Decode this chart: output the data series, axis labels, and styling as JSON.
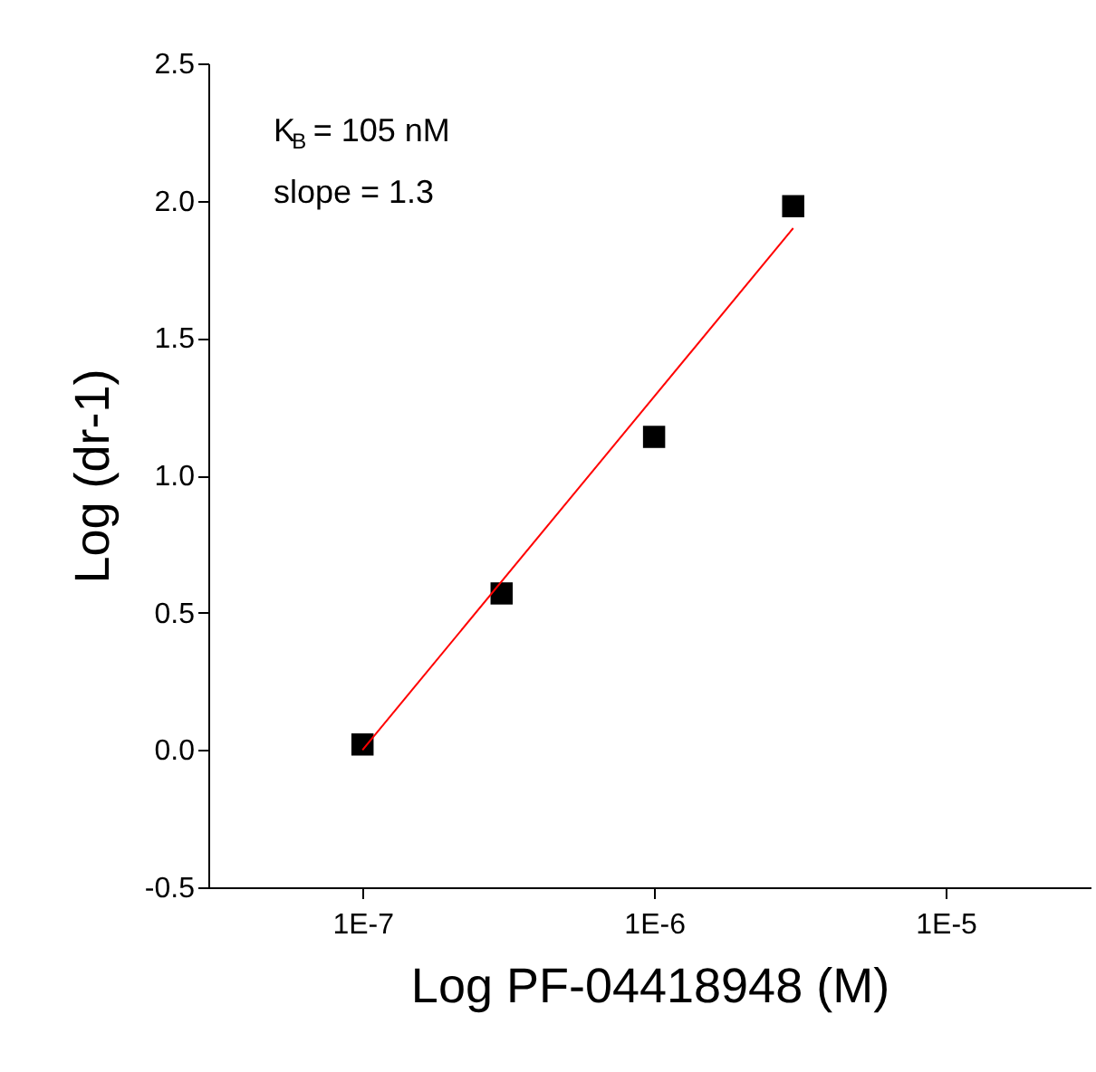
{
  "chart_data": {
    "type": "scatter",
    "xlabel": "Log PF-04418948 (M)",
    "ylabel": "Log (dr-1)",
    "log": "x",
    "grid": false,
    "xlim": [
      2.96e-08,
      3.14e-05
    ],
    "xticks": [
      {
        "value": 1e-07,
        "label": "1E-7"
      },
      {
        "value": 1e-06,
        "label": "1E-6"
      },
      {
        "value": 1e-05,
        "label": "1E-5"
      }
    ],
    "ylim": [
      -0.5,
      2.5
    ],
    "yticks": [
      {
        "value": -0.5,
        "label": "-0.5"
      },
      {
        "value": 0,
        "label": "0.0"
      },
      {
        "value": 0.5,
        "label": "0.5"
      },
      {
        "value": 1,
        "label": "1.0"
      },
      {
        "value": 1.5,
        "label": "1.5"
      },
      {
        "value": 2,
        "label": "2.0"
      },
      {
        "value": 2.5,
        "label": "2.5"
      }
    ],
    "annotations": [
      "K$_{B}$ = 105 nM",
      "slope = 1.3"
    ],
    "series": [
      {
        "marker": "square",
        "color": "#000000",
        "x": [
          1e-07,
          3e-07,
          1e-06,
          3e-06
        ],
        "values": [
          0.02,
          0.57,
          1.14,
          1.98
        ]
      },
      {
        "type": "line",
        "color": "#ff0000",
        "line_style": "solid",
        "x": [
          1e-07,
          3e-06
        ],
        "values": [
          0.0,
          1.9
        ]
      }
    ]
  }
}
